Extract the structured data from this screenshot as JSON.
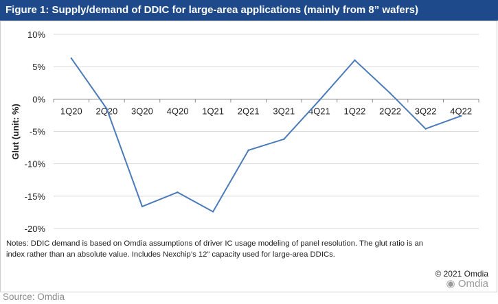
{
  "title": "Figure 1: Supply/demand of DDIC for large-area applications (mainly from 8” wafers)",
  "chart_data": {
    "type": "line",
    "title": "Figure 1: Supply/demand of DDIC for large-area applications (mainly from 8” wafers)",
    "xlabel": "",
    "ylabel": "Glut (unit: %)",
    "categories": [
      "1Q20",
      "2Q20",
      "3Q20",
      "4Q20",
      "1Q21",
      "2Q21",
      "3Q21",
      "4Q21",
      "1Q22",
      "2Q22",
      "3Q22",
      "4Q22"
    ],
    "series": [
      {
        "name": "Glut",
        "values": [
          6.3,
          -1.5,
          -16.6,
          -14.4,
          -17.4,
          -7.9,
          -6.2,
          -0.2,
          6.0,
          0.9,
          -4.6,
          -2.6
        ]
      }
    ],
    "ylim": [
      -20,
      10
    ],
    "yticks": [
      10,
      5,
      0,
      -5,
      -10,
      -15,
      -20
    ],
    "yticklabels": [
      "10%",
      "5%",
      "0%",
      "-5%",
      "-10%",
      "-15%",
      "-20%"
    ],
    "grid": true,
    "line_color": "#4a7ab8"
  },
  "notes": "Notes: DDIC demand is based on Omdia assumptions of driver IC usage modeling of panel resolution. The glut ratio is an index rather than an absolute value. Includes Nexchip’s 12” capacity used for large-area DDICs.",
  "copyright": "© 2021 Omdia",
  "watermark": "Omdia",
  "source": "Source: Omdia"
}
